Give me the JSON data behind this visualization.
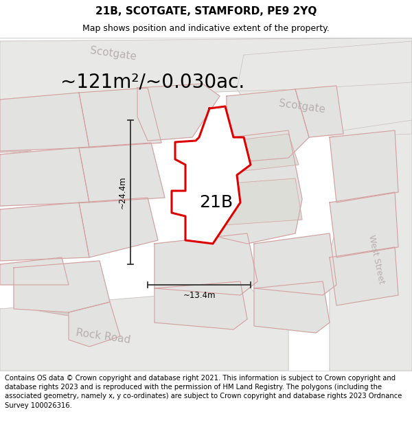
{
  "title_line1": "21B, SCOTGATE, STAMFORD, PE9 2YQ",
  "title_line2": "Map shows position and indicative extent of the property.",
  "area_text": "~121m²/~0.030ac.",
  "label_21b": "21B",
  "dim_vertical": "~24.4m",
  "dim_horizontal": "~13.4m",
  "road_scotgate_top": "Scotgate",
  "road_scotgate_diag": "Scotgate",
  "road_west_street": "West Street",
  "road_rock_road": "Rock Road",
  "footer_text": "Contains OS data © Crown copyright and database right 2021. This information is subject to Crown copyright and database rights 2023 and is reproduced with the permission of HM Land Registry. The polygons (including the associated geometry, namely x, y co-ordinates) are subject to Crown copyright and database rights 2023 Ordnance Survey 100026316.",
  "map_bg": "#f5f5f3",
  "road_fill": "#e8e8e6",
  "building_fill": "#e2e2e0",
  "building_edge": "#d4a0a0",
  "property_fill": "#f0f0ee",
  "property_edge": "#dd0000",
  "dim_color": "#333333",
  "road_text_color": "#b8b0b0",
  "header_bg": "#ffffff",
  "footer_bg": "#ffffff",
  "title_fontsize": 11,
  "subtitle_fontsize": 9,
  "area_fontsize": 20,
  "label_fontsize": 18,
  "road_fontsize": 11,
  "footer_fontsize": 7.2
}
